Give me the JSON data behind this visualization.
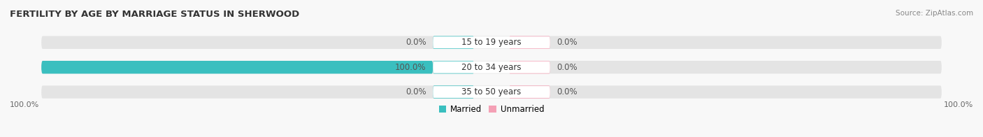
{
  "title": "FERTILITY BY AGE BY MARRIAGE STATUS IN SHERWOOD",
  "source": "Source: ZipAtlas.com",
  "categories": [
    "15 to 19 years",
    "20 to 34 years",
    "35 to 50 years"
  ],
  "married_values": [
    0.0,
    100.0,
    0.0
  ],
  "unmarried_values": [
    0.0,
    0.0,
    0.0
  ],
  "married_color": "#3abfbf",
  "unmarried_color": "#f4a0b5",
  "bar_bg_color": "#e4e4e4",
  "bg_color": "#f8f8f8",
  "legend_married": "Married",
  "legend_unmarried": "Unmarried",
  "left_axis_label": "100.0%",
  "right_axis_label": "100.0%",
  "title_fontsize": 9.5,
  "label_fontsize": 8.5,
  "source_fontsize": 7.5,
  "axis_label_fontsize": 8
}
